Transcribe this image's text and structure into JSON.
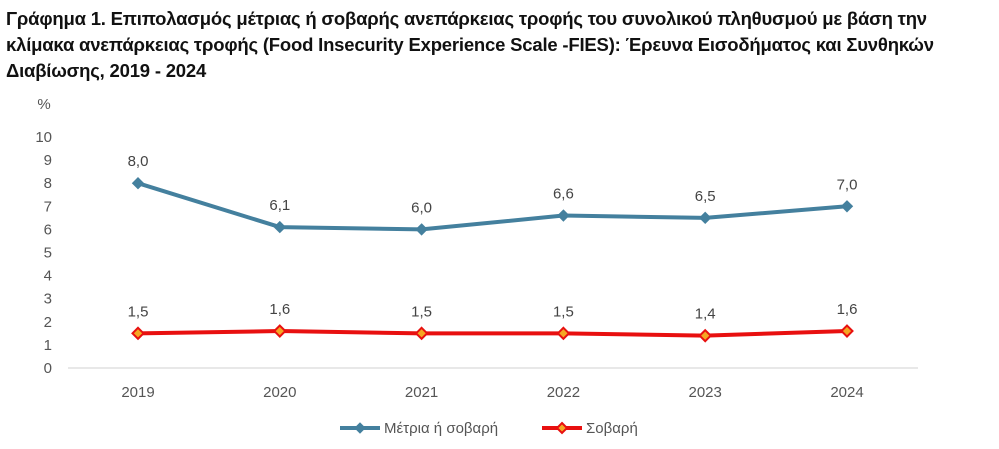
{
  "chart_data": {
    "type": "line",
    "title": "Γράφημα 1. Επιπολασμός μέτριας ή σοβαρής ανεπάρκειας τροφής του συνολικού πληθυσμού με βάση την κλίμακα ανεπάρκειας τροφής (Food Insecurity Experience Scale -FIES): Έρευνα Εισοδήματος και Συνθηκών Διαβίωσης, 2019 - 2024",
    "ylabel": "%",
    "xlabel": "",
    "categories": [
      "2019",
      "2020",
      "2021",
      "2022",
      "2023",
      "2024"
    ],
    "ylim": [
      0,
      10
    ],
    "yticks": [
      0,
      1,
      2,
      3,
      4,
      5,
      6,
      7,
      8,
      9,
      10
    ],
    "grid": false,
    "legend": "bottom",
    "series": [
      {
        "name": "Μέτρια ή σοβαρή",
        "values": [
          8.0,
          6.1,
          6.0,
          6.6,
          6.5,
          7.0
        ],
        "labels": [
          "8,0",
          "6,1",
          "6,0",
          "6,6",
          "6,5",
          "7,0"
        ],
        "color": "#44809e",
        "marker": "diamond"
      },
      {
        "name": "Σοβαρή",
        "values": [
          1.5,
          1.6,
          1.5,
          1.5,
          1.4,
          1.6
        ],
        "labels": [
          "1,5",
          "1,6",
          "1,5",
          "1,5",
          "1,4",
          "1,6"
        ],
        "color": "#e81010",
        "marker": "diamond"
      }
    ]
  }
}
